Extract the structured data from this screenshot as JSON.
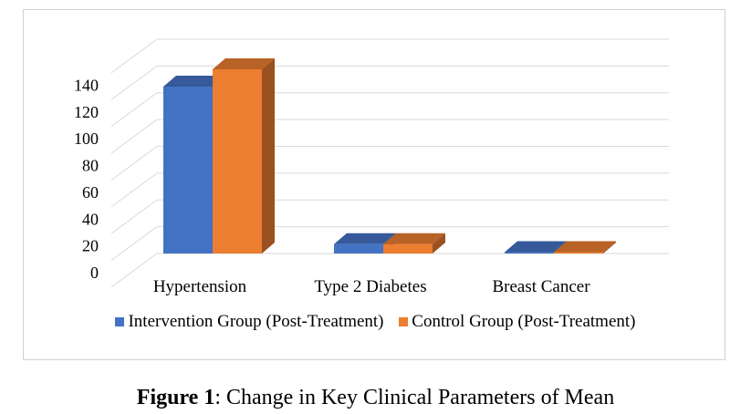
{
  "chart_data": {
    "type": "bar",
    "style": "3d-clustered-column",
    "categories": [
      "Hypertension",
      "Type 2 Diabetes",
      "Breast Cancer"
    ],
    "series": [
      {
        "name": "Intervention Group (Post-Treatment)",
        "values": [
          125,
          7,
          1
        ],
        "color": "#4472C4"
      },
      {
        "name": "Control Group (Post-Treatment)",
        "values": [
          138,
          7,
          1
        ],
        "color": "#ED7D31"
      }
    ],
    "y_ticks": [
      "0",
      "20",
      "40",
      "60",
      "80",
      "100",
      "120",
      "140"
    ],
    "ylim": [
      0,
      160
    ],
    "grid": true,
    "legend_position": "bottom"
  },
  "caption": {
    "label": "Figure 1",
    "text": ": Change in Key Clinical Parameters of Mean"
  }
}
